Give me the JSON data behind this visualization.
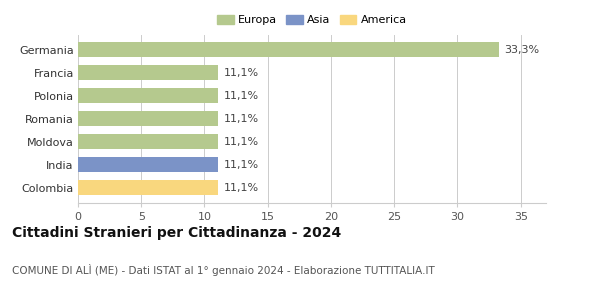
{
  "categories": [
    "Colombia",
    "India",
    "Moldova",
    "Romania",
    "Polonia",
    "Francia",
    "Germania"
  ],
  "values": [
    11.1,
    11.1,
    11.1,
    11.1,
    11.1,
    11.1,
    33.3
  ],
  "bar_colors": [
    "#f9d77e",
    "#7b93c7",
    "#b5c98e",
    "#b5c98e",
    "#b5c98e",
    "#b5c98e",
    "#b5c98e"
  ],
  "bar_labels": [
    "11,1%",
    "11,1%",
    "11,1%",
    "11,1%",
    "11,1%",
    "11,1%",
    "33,3%"
  ],
  "legend_labels": [
    "Europa",
    "Asia",
    "America"
  ],
  "legend_colors": [
    "#b5c98e",
    "#7b93c7",
    "#f9d77e"
  ],
  "title": "Cittadini Stranieri per Cittadinanza - 2024",
  "subtitle": "COMUNE DI ALÌ (ME) - Dati ISTAT al 1° gennaio 2024 - Elaborazione TUTTITALIA.IT",
  "xlim": [
    0,
    37
  ],
  "xticks": [
    0,
    5,
    10,
    15,
    20,
    25,
    30,
    35
  ],
  "background_color": "#ffffff",
  "grid_color": "#cccccc",
  "title_fontsize": 10,
  "subtitle_fontsize": 7.5,
  "label_fontsize": 8,
  "tick_fontsize": 8
}
